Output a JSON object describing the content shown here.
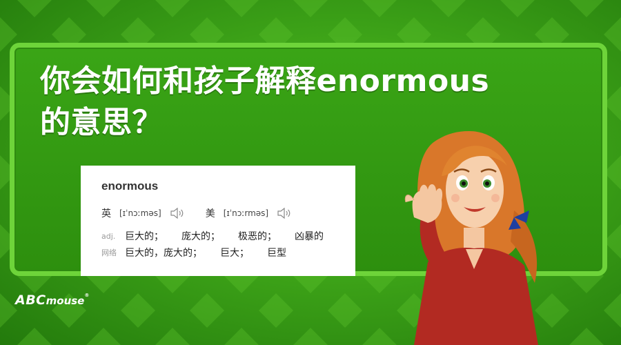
{
  "headline": {
    "line1": "你会如何和孩子解释enormous",
    "line2": "的意思？"
  },
  "dictionary": {
    "word": "enormous",
    "pronunciations": [
      {
        "label": "英",
        "ipa": "[ɪˈnɔːməs]"
      },
      {
        "label": "美",
        "ipa": "[ɪˈnɔːrməs]"
      }
    ],
    "definitions": [
      {
        "pos": "adj.",
        "meanings": [
          "巨大的；",
          "庞大的；",
          "极恶的；",
          "凶暴的"
        ]
      },
      {
        "pos": "网络",
        "meanings": [
          "巨大的，庞大的；",
          "巨大；",
          "巨型"
        ]
      }
    ]
  },
  "logo": {
    "abc": "ABC",
    "mouse": "mouse",
    "reg": "®"
  },
  "icons": [
    "speaker-icon",
    "speaker-icon"
  ],
  "colors": {
    "background": "#3da318",
    "frame": "#6ed43a",
    "text": "#ffffff"
  }
}
